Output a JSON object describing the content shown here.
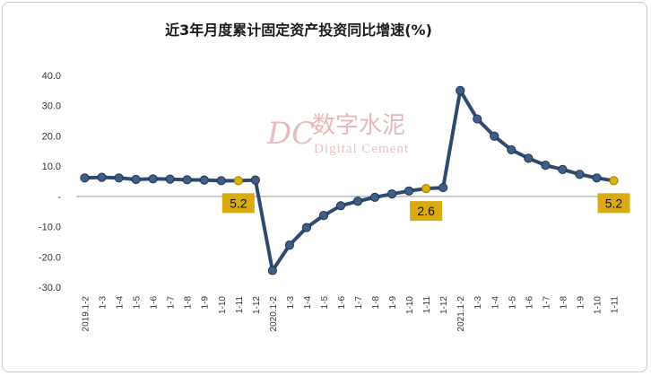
{
  "chart_data": {
    "type": "line",
    "title": "近3年月度累计固定资产投资同比增速(%)",
    "xlabel": "",
    "ylabel": "",
    "ylim": [
      -30,
      40
    ],
    "yticks": [
      "40.0",
      "30.0",
      "20.0",
      "10.0",
      "-",
      "-10.0",
      "-20.0",
      "-30.0"
    ],
    "categories": [
      "2019.1-2",
      "1-3",
      "1-4",
      "1-5",
      "1-6",
      "1-7",
      "1-8",
      "1-9",
      "1-10",
      "1-11",
      "1-12",
      "2020.1-2",
      "1-3",
      "1-4",
      "1-5",
      "1-6",
      "1-7",
      "1-8",
      "1-9",
      "1-10",
      "1-11",
      "1-12",
      "2021.1-2",
      "1-3",
      "1-4",
      "1-5",
      "1-6",
      "1-7",
      "1-8",
      "1-9",
      "1-10",
      "1-11"
    ],
    "series": [
      {
        "values": [
          6.1,
          6.3,
          6.1,
          5.6,
          5.8,
          5.7,
          5.5,
          5.4,
          5.2,
          5.2,
          5.4,
          -24.5,
          -16.1,
          -10.3,
          -6.3,
          -3.1,
          -1.6,
          -0.3,
          0.8,
          1.8,
          2.6,
          2.9,
          35.0,
          25.6,
          19.9,
          15.4,
          12.6,
          10.3,
          8.9,
          7.3,
          6.1,
          5.2
        ],
        "color": "#2f4a6e"
      }
    ],
    "highlight_color": "#d9b200",
    "callouts": [
      {
        "index": 9,
        "label": "5.2"
      },
      {
        "index": 20,
        "label": "2.6"
      },
      {
        "index": 31,
        "label": "5.2"
      }
    ],
    "callout_bg": "#d9aa12",
    "grid": false,
    "legend": "none"
  },
  "watermark": {
    "logo": "DC",
    "name_cn": "数字水泥",
    "name_en": "Digital Cement"
  }
}
